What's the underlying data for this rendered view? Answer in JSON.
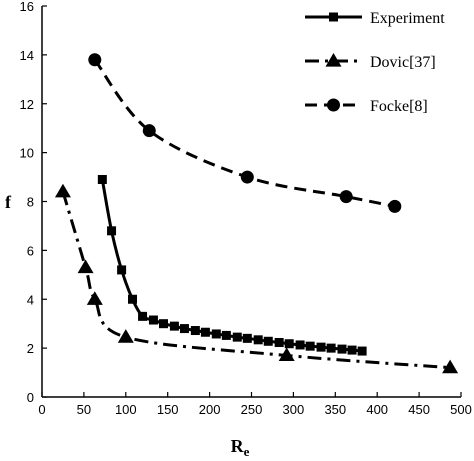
{
  "chart_data": {
    "type": "line",
    "title": "",
    "xlabel": "Re",
    "ylabel": "f",
    "xlim": [
      0,
      500
    ],
    "ylim": [
      0,
      16
    ],
    "xticks": [
      0,
      50,
      100,
      150,
      200,
      250,
      300,
      350,
      400,
      450,
      500
    ],
    "yticks": [
      0,
      2,
      4,
      6,
      8,
      10,
      12,
      14,
      16
    ],
    "grid": false,
    "legend_position": "top-right",
    "series": [
      {
        "name": "Experiment",
        "marker": "square",
        "dash": "solid",
        "color": "#000000",
        "x": [
          72,
          83,
          95,
          108,
          120,
          133,
          145,
          158,
          170,
          183,
          195,
          208,
          220,
          233,
          245,
          258,
          270,
          283,
          295,
          308,
          320,
          333,
          345,
          358,
          370,
          382
        ],
        "y": [
          8.9,
          6.8,
          5.2,
          4.0,
          3.3,
          3.15,
          3.0,
          2.9,
          2.8,
          2.72,
          2.65,
          2.58,
          2.52,
          2.45,
          2.4,
          2.34,
          2.28,
          2.23,
          2.18,
          2.13,
          2.08,
          2.04,
          2.0,
          1.96,
          1.92,
          1.88
        ]
      },
      {
        "name": "Dovic[37]",
        "marker": "triangle",
        "dash": "dashdot",
        "color": "#000000",
        "x": [
          25,
          52,
          63,
          100,
          292,
          487
        ],
        "y": [
          8.4,
          5.3,
          4.0,
          2.45,
          1.7,
          1.2
        ]
      },
      {
        "name": "Focke[8]",
        "marker": "circle",
        "dash": "dashed",
        "color": "#000000",
        "x": [
          63,
          128,
          245,
          363,
          421
        ],
        "y": [
          13.8,
          10.9,
          9.0,
          8.2,
          7.8
        ]
      }
    ]
  }
}
